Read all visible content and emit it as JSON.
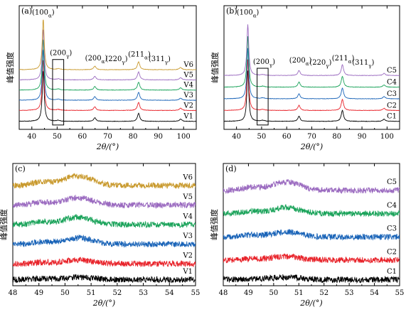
{
  "chart_data": [
    {
      "id": "a",
      "type": "line",
      "panel_label": "(a)",
      "xlabel": "2θ/(°)",
      "ylabel": "峰值强度",
      "xlim": [
        35,
        105
      ],
      "xticks": [
        40,
        50,
        60,
        70,
        80,
        90,
        100
      ],
      "grid": false,
      "peaks": [
        {
          "pos": 44.5,
          "h": 70,
          "w": 0.45
        },
        {
          "pos": 50.5,
          "h": 1.2,
          "w": 0.8
        },
        {
          "pos": 64.9,
          "h": 5,
          "w": 0.55
        },
        {
          "pos": 82.2,
          "h": 11,
          "w": 0.55
        },
        {
          "pos": 98.8,
          "h": 3,
          "w": 0.6
        }
      ],
      "series": [
        {
          "name": "V1",
          "color": "#000000",
          "baseline": 1
        },
        {
          "name": "V2",
          "color": "#e8232a",
          "baseline": 16
        },
        {
          "name": "V3",
          "color": "#1a64b8",
          "baseline": 30
        },
        {
          "name": "V4",
          "color": "#1aa35a",
          "baseline": 44
        },
        {
          "name": "V5",
          "color": "#9b6bc0",
          "baseline": 58
        },
        {
          "name": "V6",
          "color": "#c99a2e",
          "baseline": 72
        }
      ],
      "peak_labels": [
        {
          "text": "(100",
          "sub": "α",
          "x": 44.5,
          "level": 148
        },
        {
          "text": "(200",
          "sub": "γ",
          "x": 51.5,
          "level": 92
        },
        {
          "text": "(200",
          "sub": "α",
          "x": 65.5,
          "level": 85
        },
        {
          "text": "(220",
          "sub": "γ",
          "x": 73.5,
          "level": 84
        },
        {
          "text": "(211",
          "sub": "α",
          "x": 82.5,
          "level": 90
        },
        {
          "text": "(311",
          "sub": "γ",
          "x": 90.5,
          "level": 84
        }
      ],
      "box": {
        "x": [
          48.2,
          52.6
        ],
        "y": [
          -4,
          86
        ]
      },
      "ylim": [
        -10,
        160
      ]
    },
    {
      "id": "b",
      "type": "line",
      "panel_label": "(b)",
      "xlabel": "2θ/(°)",
      "ylabel": "峰值强度",
      "xlim": [
        35,
        105
      ],
      "xticks": [
        40,
        50,
        60,
        70,
        80,
        90,
        100
      ],
      "grid": false,
      "peaks": [
        {
          "pos": 44.5,
          "h": 70,
          "w": 0.45
        },
        {
          "pos": 50.5,
          "h": 1.2,
          "w": 0.8
        },
        {
          "pos": 64.9,
          "h": 7,
          "w": 0.55
        },
        {
          "pos": 82.2,
          "h": 15,
          "w": 0.55
        },
        {
          "pos": 98.8,
          "h": 3,
          "w": 0.6
        }
      ],
      "series": [
        {
          "name": "C1",
          "color": "#000000",
          "baseline": 1
        },
        {
          "name": "C2",
          "color": "#e8232a",
          "baseline": 16
        },
        {
          "name": "C3",
          "color": "#1a64b8",
          "baseline": 32
        },
        {
          "name": "C4",
          "color": "#1aa35a",
          "baseline": 48
        },
        {
          "name": "C5",
          "color": "#9b6bc0",
          "baseline": 64
        }
      ],
      "peak_labels": [
        {
          "text": "(100",
          "sub": "α",
          "x": 44.5,
          "level": 148
        },
        {
          "text": "(200",
          "sub": "γ",
          "x": 51.0,
          "level": 80
        },
        {
          "text": "(200",
          "sub": "α",
          "x": 65.5,
          "level": 82
        },
        {
          "text": "(220",
          "sub": "γ",
          "x": 73.5,
          "level": 79
        },
        {
          "text": "(211",
          "sub": "α",
          "x": 82.5,
          "level": 85
        },
        {
          "text": "(311",
          "sub": "γ",
          "x": 90.5,
          "level": 79
        }
      ],
      "box": {
        "x": [
          48.2,
          52.6
        ],
        "y": [
          -4,
          74
        ]
      },
      "ylim": [
        -10,
        160
      ]
    },
    {
      "id": "c",
      "type": "line",
      "panel_label": "(c)",
      "xlabel": "2θ/(°)",
      "ylabel": "峰值强度",
      "xlim": [
        48,
        55
      ],
      "xticks": [
        48,
        49,
        50,
        51,
        52,
        53,
        54,
        55
      ],
      "grid": false,
      "noise": 2.2,
      "series": [
        {
          "name": "V1",
          "color": "#000000",
          "baseline": 3,
          "hump": 2
        },
        {
          "name": "V2",
          "color": "#e8232a",
          "baseline": 16,
          "hump": 3
        },
        {
          "name": "V3",
          "color": "#1a64b8",
          "baseline": 32,
          "hump": 5
        },
        {
          "name": "V4",
          "color": "#1aa35a",
          "baseline": 48,
          "hump": 6
        },
        {
          "name": "V5",
          "color": "#9b6bc0",
          "baseline": 64,
          "hump": 6
        },
        {
          "name": "V6",
          "color": "#c99a2e",
          "baseline": 80,
          "hump": 8
        }
      ],
      "ylim": [
        -2,
        98
      ]
    },
    {
      "id": "d",
      "type": "line",
      "panel_label": "(d)",
      "xlabel": "2θ/(°)",
      "ylabel": "峰值强度",
      "xlim": [
        48,
        55
      ],
      "xticks": [
        48,
        49,
        50,
        51,
        52,
        53,
        54,
        55
      ],
      "grid": false,
      "noise": 2.2,
      "series": [
        {
          "name": "C1",
          "color": "#000000",
          "baseline": 3,
          "hump": 2
        },
        {
          "name": "C2",
          "color": "#e8232a",
          "baseline": 19,
          "hump": 3
        },
        {
          "name": "C3",
          "color": "#1a64b8",
          "baseline": 38,
          "hump": 4
        },
        {
          "name": "C4",
          "color": "#1aa35a",
          "baseline": 57,
          "hump": 5
        },
        {
          "name": "C5",
          "color": "#9b6bc0",
          "baseline": 76,
          "hump": 7
        }
      ],
      "ylim": [
        -2,
        98
      ]
    }
  ]
}
